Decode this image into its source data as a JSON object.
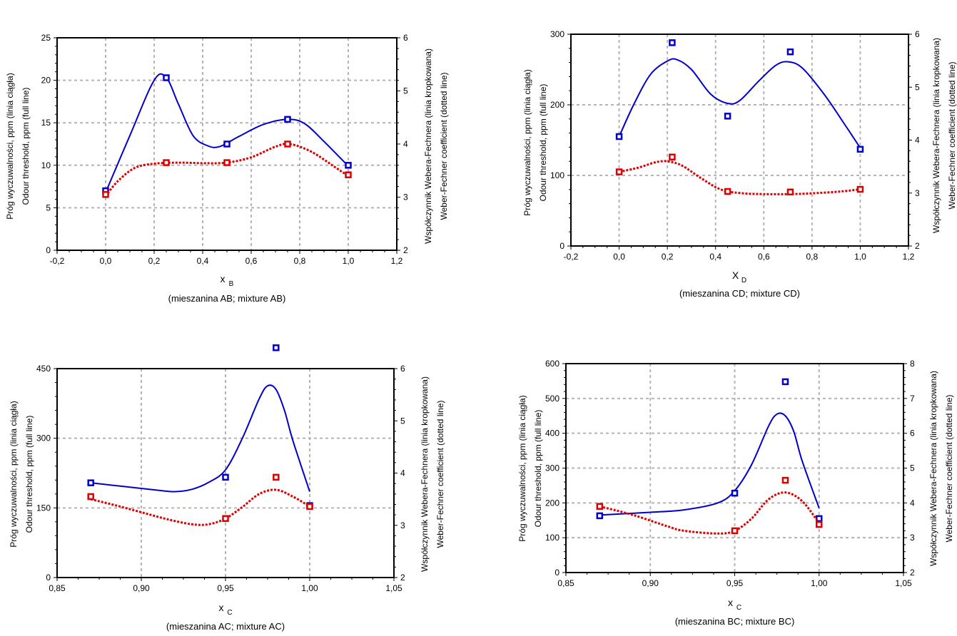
{
  "chart_data": [
    {
      "type": "scatter",
      "caption": "(mieszanina AB; mixture AB)",
      "xlabel_main": "x",
      "xlabel_sub": "B",
      "ylabel_left": [
        "Próg wyczuwalności, ppm  (linia ciągła)",
        "Odour threshold, ppm (full line)"
      ],
      "ylabel_right": [
        "Współczynnik Webera-Fechnera (linia kropkowana)",
        "Weber-Fechner coefficient  (dotted line)"
      ],
      "xlim": [
        -0.2,
        1.2
      ],
      "ylim": [
        0,
        25
      ],
      "y2lim": [
        2,
        6
      ],
      "xticks": [
        -0.2,
        0.0,
        0.2,
        0.4,
        0.6,
        0.8,
        1.0,
        1.2
      ],
      "xtick_labels": [
        "-0,2",
        "0,0",
        "0,2",
        "0,4",
        "0,6",
        "0,8",
        "1,0",
        "1,2"
      ],
      "yticks": [
        0,
        5,
        10,
        15,
        20,
        25
      ],
      "ytick_labels": [
        "0",
        "5",
        "10",
        "15",
        "20",
        "25"
      ],
      "y2ticks": [
        2,
        3,
        4,
        5,
        6
      ],
      "y2tick_labels": [
        "2",
        "3",
        "4",
        "5",
        "6"
      ],
      "grid": true,
      "series": [
        {
          "axis": "left",
          "color": "#0000cc",
          "line_style": "solid",
          "points": [
            [
              0.0,
              7.0
            ],
            [
              0.25,
              20.3
            ],
            [
              0.5,
              12.5
            ],
            [
              0.75,
              15.4
            ],
            [
              1.0,
              10.0
            ]
          ],
          "curve": [
            [
              0.0,
              6.8
            ],
            [
              0.1,
              13.5
            ],
            [
              0.2,
              20.0
            ],
            [
              0.25,
              20.3
            ],
            [
              0.3,
              17.2
            ],
            [
              0.36,
              13.5
            ],
            [
              0.42,
              12.3
            ],
            [
              0.47,
              12.2
            ],
            [
              0.55,
              13.4
            ],
            [
              0.65,
              14.8
            ],
            [
              0.75,
              15.4
            ],
            [
              0.82,
              14.9
            ],
            [
              0.9,
              12.8
            ],
            [
              1.0,
              9.9
            ]
          ]
        },
        {
          "axis": "right",
          "color": "#dd0000",
          "line_style": "dotted",
          "points": [
            [
              0.0,
              3.05
            ],
            [
              0.25,
              3.65
            ],
            [
              0.5,
              3.65
            ],
            [
              0.75,
              4.0
            ],
            [
              1.0,
              3.42
            ]
          ],
          "curve": [
            [
              0.0,
              3.02
            ],
            [
              0.05,
              3.3
            ],
            [
              0.12,
              3.55
            ],
            [
              0.2,
              3.63
            ],
            [
              0.3,
              3.65
            ],
            [
              0.4,
              3.64
            ],
            [
              0.5,
              3.65
            ],
            [
              0.6,
              3.75
            ],
            [
              0.7,
              3.95
            ],
            [
              0.76,
              4.0
            ],
            [
              0.85,
              3.85
            ],
            [
              0.95,
              3.55
            ],
            [
              1.0,
              3.4
            ]
          ]
        }
      ]
    },
    {
      "type": "scatter",
      "caption": "(mieszanina CD; mixture CD)",
      "xlabel_main": "X",
      "xlabel_sub": "D",
      "ylabel_left": [
        "Próg wyczuwalności, ppm  (linia ciągła)",
        "Odour threshold, ppm (full line)"
      ],
      "ylabel_right": [
        "Współczynnik Webera-Fechnera (linia kropkowana)",
        "Weber-Fechner coefficient  (dotted line)"
      ],
      "xlim": [
        -0.2,
        1.2
      ],
      "ylim": [
        0,
        300
      ],
      "y2lim": [
        2,
        6
      ],
      "xticks": [
        -0.2,
        0.0,
        0.2,
        0.4,
        0.6,
        0.8,
        1.0,
        1.2
      ],
      "xtick_labels": [
        "-0,2",
        "0,0",
        "0,2",
        "0,4",
        "0,6",
        "0,8",
        "1,0",
        "1,2"
      ],
      "yticks": [
        0,
        100,
        200,
        300
      ],
      "ytick_labels": [
        "0",
        "100",
        "200",
        "300"
      ],
      "y2ticks": [
        2,
        3,
        4,
        5,
        6
      ],
      "y2tick_labels": [
        "2",
        "3",
        "4",
        "5",
        "6"
      ],
      "grid": true,
      "series": [
        {
          "axis": "left",
          "color": "#0000cc",
          "line_style": "solid",
          "points": [
            [
              0.0,
              155
            ],
            [
              0.22,
              288
            ],
            [
              0.45,
              184
            ],
            [
              0.71,
              275
            ],
            [
              1.0,
              137
            ]
          ],
          "curve": [
            [
              0.0,
              155
            ],
            [
              0.06,
              200
            ],
            [
              0.13,
              243
            ],
            [
              0.2,
              262
            ],
            [
              0.24,
              264
            ],
            [
              0.3,
              250
            ],
            [
              0.38,
              215
            ],
            [
              0.45,
              202
            ],
            [
              0.5,
              206
            ],
            [
              0.58,
              234
            ],
            [
              0.65,
              256
            ],
            [
              0.7,
              261
            ],
            [
              0.76,
              252
            ],
            [
              0.85,
              215
            ],
            [
              0.93,
              175
            ],
            [
              1.0,
              139
            ]
          ]
        },
        {
          "axis": "right",
          "color": "#dd0000",
          "line_style": "dotted",
          "points": [
            [
              0.0,
              3.4
            ],
            [
              0.22,
              3.68
            ],
            [
              0.45,
              3.03
            ],
            [
              0.71,
              3.02
            ],
            [
              1.0,
              3.07
            ]
          ],
          "curve": [
            [
              0.0,
              3.4
            ],
            [
              0.08,
              3.48
            ],
            [
              0.15,
              3.58
            ],
            [
              0.2,
              3.6
            ],
            [
              0.26,
              3.52
            ],
            [
              0.34,
              3.28
            ],
            [
              0.42,
              3.07
            ],
            [
              0.5,
              3.0
            ],
            [
              0.6,
              2.98
            ],
            [
              0.72,
              2.98
            ],
            [
              0.82,
              3.0
            ],
            [
              0.92,
              3.03
            ],
            [
              1.0,
              3.07
            ]
          ]
        }
      ]
    },
    {
      "type": "scatter",
      "caption": "(mieszanina AC; mixture AC)",
      "xlabel_main": "x",
      "xlabel_sub": "C",
      "ylabel_left": [
        "Próg wyczuwalności, ppm (linia ciągła)",
        "Odour threshold, ppm (full line)"
      ],
      "ylabel_right": [
        "Współczynnik Webera-Fechnera (linia kropkowana)",
        "Weber-Fechner coefficient (dotted line)"
      ],
      "xlim": [
        0.85,
        1.05
      ],
      "ylim": [
        0,
        450
      ],
      "y2lim": [
        2,
        6
      ],
      "xticks": [
        0.85,
        0.9,
        0.95,
        1.0,
        1.05
      ],
      "xtick_labels": [
        "0,85",
        "0,90",
        "0,95",
        "1,00",
        "1,05"
      ],
      "yticks": [
        0,
        150,
        300,
        450
      ],
      "ytick_labels": [
        "0",
        "150",
        "300",
        "450"
      ],
      "y2ticks": [
        2,
        3,
        4,
        5,
        6
      ],
      "y2tick_labels": [
        "2",
        "3",
        "4",
        "5",
        "6"
      ],
      "grid": true,
      "series": [
        {
          "axis": "left",
          "color": "#0000cc",
          "line_style": "solid",
          "points": [
            [
              0.87,
              204
            ],
            [
              0.95,
              216
            ],
            [
              0.98,
              495
            ],
            [
              1.0,
              155
            ]
          ],
          "curve": [
            [
              0.87,
              204
            ],
            [
              0.89,
              196
            ],
            [
              0.91,
              188
            ],
            [
              0.92,
              185
            ],
            [
              0.93,
              190
            ],
            [
              0.94,
              205
            ],
            [
              0.95,
              232
            ],
            [
              0.96,
              300
            ],
            [
              0.97,
              385
            ],
            [
              0.975,
              413
            ],
            [
              0.98,
              405
            ],
            [
              0.985,
              360
            ],
            [
              0.99,
              295
            ],
            [
              1.0,
              185
            ]
          ]
        },
        {
          "axis": "right",
          "color": "#dd0000",
          "line_style": "dotted",
          "points": [
            [
              0.87,
              3.55
            ],
            [
              0.95,
              3.13
            ],
            [
              0.98,
              3.92
            ],
            [
              1.0,
              3.36
            ]
          ],
          "curve": [
            [
              0.87,
              3.5
            ],
            [
              0.885,
              3.38
            ],
            [
              0.9,
              3.25
            ],
            [
              0.915,
              3.12
            ],
            [
              0.93,
              3.02
            ],
            [
              0.94,
              3.02
            ],
            [
              0.95,
              3.13
            ],
            [
              0.96,
              3.35
            ],
            [
              0.97,
              3.6
            ],
            [
              0.98,
              3.68
            ],
            [
              0.99,
              3.55
            ],
            [
              1.0,
              3.36
            ]
          ]
        }
      ]
    },
    {
      "type": "scatter",
      "caption": "(mieszanina BC; mixture BC)",
      "xlabel_main": "x",
      "xlabel_sub": "C",
      "ylabel_left": [
        "Próg wyczuwalności, ppm (linia ciągła)",
        "Odour threshold, ppm (full line)"
      ],
      "ylabel_right": [
        "Współczynnik Webera-Fechnera (linia kropkowana)",
        "Weber-Fechner coefficient (dotted line)"
      ],
      "xlim": [
        0.85,
        1.05
      ],
      "ylim": [
        0,
        600
      ],
      "y2lim": [
        2,
        8
      ],
      "xticks": [
        0.85,
        0.9,
        0.95,
        1.0,
        1.05
      ],
      "xtick_labels": [
        "0,85",
        "0,90",
        "0,95",
        "1,00",
        "1,05"
      ],
      "yticks": [
        0,
        100,
        200,
        300,
        400,
        500,
        600
      ],
      "ytick_labels": [
        "0",
        "100",
        "200",
        "300",
        "400",
        "500",
        "600"
      ],
      "y2ticks": [
        2,
        3,
        4,
        5,
        6,
        7,
        8
      ],
      "y2tick_labels": [
        "2",
        "3",
        "4",
        "5",
        "6",
        "7",
        "8"
      ],
      "grid": true,
      "series": [
        {
          "axis": "left",
          "color": "#0000cc",
          "line_style": "solid",
          "points": [
            [
              0.87,
              163
            ],
            [
              0.95,
              228
            ],
            [
              0.98,
              548
            ],
            [
              1.0,
              155
            ]
          ],
          "curve": [
            [
              0.87,
              165
            ],
            [
              0.9,
              173
            ],
            [
              0.92,
              180
            ],
            [
              0.94,
              200
            ],
            [
              0.95,
              235
            ],
            [
              0.96,
              310
            ],
            [
              0.97,
              420
            ],
            [
              0.975,
              455
            ],
            [
              0.98,
              450
            ],
            [
              0.985,
              405
            ],
            [
              0.99,
              320
            ],
            [
              1.0,
              185
            ]
          ]
        },
        {
          "axis": "right",
          "color": "#dd0000",
          "line_style": "dotted",
          "points": [
            [
              0.87,
              3.9
            ],
            [
              0.95,
              3.2
            ],
            [
              0.98,
              4.65
            ],
            [
              1.0,
              3.38
            ]
          ],
          "curve": [
            [
              0.87,
              3.9
            ],
            [
              0.89,
              3.65
            ],
            [
              0.91,
              3.33
            ],
            [
              0.92,
              3.2
            ],
            [
              0.94,
              3.12
            ],
            [
              0.95,
              3.2
            ],
            [
              0.96,
              3.55
            ],
            [
              0.97,
              4.1
            ],
            [
              0.98,
              4.3
            ],
            [
              0.99,
              4.05
            ],
            [
              1.0,
              3.42
            ]
          ]
        }
      ]
    }
  ]
}
